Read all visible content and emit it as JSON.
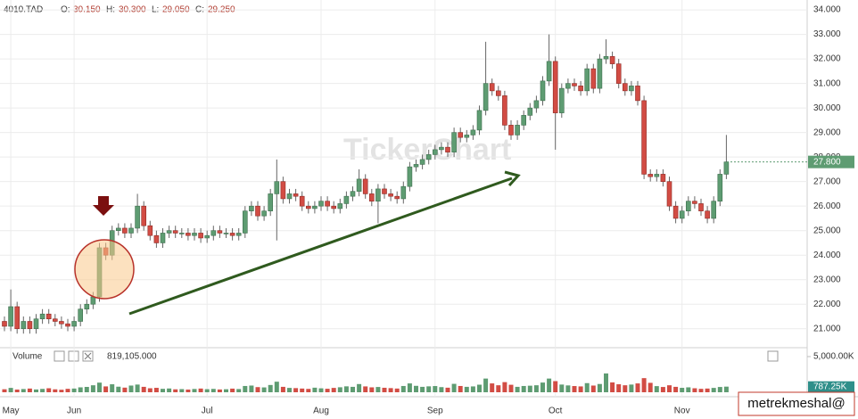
{
  "header": {
    "symbol": "4010.TAD",
    "fields": [
      {
        "label": "O:",
        "value": "30.150"
      },
      {
        "label": "H:",
        "value": "30.300"
      },
      {
        "label": "L:",
        "value": "29.050"
      },
      {
        "label": "C:",
        "value": "29.250"
      }
    ]
  },
  "watermark": "TickerChart",
  "signature": "metrekmeshal@",
  "chart_data": {
    "type": "candlestick",
    "categories": [
      null,
      "May",
      null,
      null,
      null,
      null,
      null,
      null,
      null,
      null,
      null,
      "Jun",
      null,
      null,
      null,
      null,
      null,
      null,
      null,
      null,
      null,
      null,
      null,
      null,
      null,
      null,
      null,
      null,
      null,
      null,
      null,
      null,
      "Jul",
      null,
      null,
      null,
      null,
      null,
      null,
      null,
      null,
      null,
      null,
      null,
      null,
      null,
      null,
      null,
      null,
      null,
      "Aug",
      null,
      null,
      null,
      null,
      null,
      null,
      null,
      null,
      null,
      null,
      null,
      null,
      null,
      null,
      null,
      null,
      null,
      "Sep",
      null,
      null,
      null,
      null,
      null,
      null,
      null,
      null,
      null,
      null,
      null,
      null,
      null,
      null,
      null,
      null,
      null,
      null,
      "Oct",
      null,
      null,
      null,
      null,
      null,
      null,
      null,
      null,
      null,
      null,
      null,
      null,
      null,
      null,
      null,
      null,
      null,
      null,
      null,
      "Nov",
      null,
      null,
      null,
      null,
      null,
      null,
      null
    ],
    "open": [
      21.3,
      21.1,
      21.9,
      21.0,
      21.3,
      21.0,
      21.4,
      21.6,
      21.4,
      21.3,
      21.2,
      21.1,
      21.3,
      21.8,
      22.0,
      22.3,
      24.3,
      24.0,
      25.0,
      25.1,
      24.9,
      25.1,
      26.0,
      25.2,
      24.8,
      24.5,
      24.9,
      25.0,
      24.9,
      24.9,
      24.8,
      24.9,
      24.7,
      24.8,
      25.0,
      24.9,
      24.9,
      24.8,
      24.9,
      25.8,
      26.0,
      25.6,
      25.8,
      26.5,
      27.0,
      26.3,
      26.5,
      26.4,
      26.0,
      25.9,
      26.0,
      26.2,
      26.0,
      25.9,
      26.1,
      26.4,
      26.6,
      27.1,
      26.5,
      26.2,
      26.7,
      26.5,
      26.4,
      26.3,
      26.8,
      27.6,
      27.7,
      27.9,
      28.1,
      28.3,
      28.4,
      28.2,
      29.0,
      28.8,
      28.9,
      29.1,
      29.9,
      31.0,
      30.7,
      30.5,
      29.3,
      28.9,
      29.3,
      29.7,
      30.0,
      30.3,
      31.1,
      31.9,
      29.8,
      30.8,
      31.0,
      30.9,
      30.7,
      31.6,
      30.8,
      32.0,
      32.1,
      31.8,
      31.0,
      30.7,
      30.9,
      30.3,
      27.3,
      27.2,
      27.3,
      27.0,
      26.0,
      25.5,
      25.8,
      26.2,
      26.1,
      25.8,
      25.5,
      26.2,
      27.3
    ],
    "high": [
      21.5,
      22.6,
      22.1,
      21.5,
      21.5,
      21.6,
      21.8,
      21.8,
      21.6,
      21.5,
      21.4,
      21.5,
      22.0,
      22.2,
      22.5,
      24.5,
      24.5,
      25.2,
      25.3,
      25.3,
      25.3,
      26.5,
      26.2,
      25.4,
      25.0,
      25.1,
      25.2,
      25.2,
      25.1,
      25.1,
      25.1,
      25.1,
      25.0,
      25.2,
      25.2,
      25.1,
      25.1,
      25.1,
      26.0,
      26.2,
      26.2,
      26.0,
      26.7,
      27.9,
      27.2,
      26.7,
      26.7,
      26.6,
      26.2,
      26.2,
      26.4,
      26.4,
      26.2,
      26.3,
      26.6,
      26.8,
      27.5,
      27.3,
      26.7,
      26.9,
      26.9,
      26.7,
      26.6,
      27.0,
      27.8,
      27.9,
      28.1,
      28.3,
      28.5,
      28.6,
      28.6,
      29.2,
      29.2,
      29.1,
      29.3,
      30.1,
      32.7,
      31.2,
      30.9,
      30.7,
      29.5,
      29.5,
      29.9,
      30.2,
      30.5,
      31.3,
      33.0,
      32.1,
      31.0,
      31.2,
      31.2,
      31.1,
      31.8,
      31.8,
      32.2,
      32.8,
      32.3,
      32.0,
      31.2,
      31.1,
      31.1,
      30.5,
      27.5,
      27.5,
      27.5,
      27.2,
      26.2,
      26.0,
      26.4,
      26.4,
      26.3,
      26.0,
      26.4,
      27.5,
      28.9
    ],
    "low": [
      20.9,
      20.9,
      20.8,
      20.8,
      20.8,
      20.8,
      21.2,
      21.2,
      21.1,
      21.0,
      20.9,
      20.9,
      21.1,
      21.6,
      21.8,
      22.1,
      23.8,
      23.8,
      24.8,
      24.7,
      24.7,
      24.9,
      25.0,
      24.6,
      24.3,
      24.3,
      24.7,
      24.7,
      24.7,
      24.6,
      24.6,
      24.5,
      24.5,
      24.6,
      24.7,
      24.7,
      24.6,
      24.6,
      24.7,
      25.6,
      25.4,
      25.4,
      25.6,
      24.6,
      26.1,
      26.1,
      26.2,
      25.8,
      25.7,
      25.7,
      25.8,
      25.8,
      25.7,
      25.7,
      25.9,
      26.2,
      26.4,
      26.3,
      26.0,
      25.3,
      26.3,
      26.2,
      26.1,
      26.1,
      26.6,
      27.4,
      27.5,
      27.7,
      27.9,
      28.1,
      28.0,
      28.0,
      28.6,
      28.6,
      28.7,
      28.9,
      29.7,
      30.5,
      30.3,
      29.1,
      28.7,
      28.7,
      29.1,
      29.5,
      29.8,
      30.1,
      30.9,
      28.3,
      29.6,
      30.6,
      30.7,
      30.5,
      30.5,
      30.6,
      30.6,
      31.8,
      31.6,
      30.8,
      30.5,
      30.5,
      30.1,
      27.1,
      27.0,
      27.0,
      26.8,
      25.8,
      25.3,
      25.3,
      25.6,
      25.9,
      25.6,
      25.3,
      25.3,
      26.0,
      27.1
    ],
    "close": [
      21.1,
      21.9,
      21.0,
      21.3,
      21.0,
      21.4,
      21.6,
      21.4,
      21.3,
      21.2,
      21.1,
      21.3,
      21.8,
      22.0,
      22.3,
      24.3,
      24.0,
      25.0,
      25.1,
      24.9,
      25.1,
      26.0,
      25.2,
      24.8,
      24.5,
      24.9,
      25.0,
      24.9,
      24.9,
      24.8,
      24.9,
      24.7,
      24.8,
      25.0,
      24.9,
      24.9,
      24.8,
      24.9,
      25.8,
      26.0,
      25.6,
      25.8,
      26.5,
      27.0,
      26.3,
      26.5,
      26.4,
      26.0,
      25.9,
      26.0,
      26.2,
      26.0,
      25.9,
      26.1,
      26.4,
      26.6,
      27.1,
      26.5,
      26.2,
      26.7,
      26.5,
      26.4,
      26.3,
      26.8,
      27.6,
      27.7,
      27.9,
      28.1,
      28.3,
      28.4,
      28.2,
      29.0,
      28.8,
      28.9,
      29.1,
      29.9,
      31.0,
      30.7,
      30.5,
      29.3,
      28.9,
      29.3,
      29.7,
      30.0,
      30.3,
      31.1,
      31.9,
      29.8,
      30.8,
      31.0,
      30.9,
      30.7,
      31.6,
      30.8,
      32.0,
      32.1,
      31.8,
      31.0,
      30.7,
      30.9,
      30.3,
      27.3,
      27.2,
      27.3,
      27.0,
      26.0,
      25.5,
      25.8,
      26.2,
      26.1,
      25.8,
      25.5,
      26.2,
      27.3,
      27.8
    ],
    "volume": [
      420000,
      610000,
      380000,
      450000,
      520000,
      390000,
      470000,
      560000,
      410000,
      350000,
      480000,
      520000,
      690000,
      750000,
      980000,
      1350000,
      820000,
      1120000,
      780000,
      650000,
      940000,
      1080000,
      760000,
      560000,
      620000,
      480000,
      530000,
      410000,
      440000,
      380000,
      460000,
      520000,
      430000,
      470000,
      390000,
      420000,
      510000,
      450000,
      880000,
      940000,
      720000,
      680000,
      1020000,
      1480000,
      760000,
      610000,
      580000,
      520000,
      470000,
      640000,
      550000,
      490000,
      610000,
      700000,
      830000,
      760000,
      1150000,
      820000,
      690000,
      740000,
      630000,
      580000,
      520000,
      880000,
      1240000,
      900000,
      760000,
      830000,
      870000,
      720000,
      640000,
      1180000,
      880000,
      760000,
      820000,
      1060000,
      1920000,
      1240000,
      980000,
      1420000,
      1050000,
      760000,
      880000,
      920000,
      980000,
      1360000,
      1920000,
      1560000,
      1080000,
      960000,
      870000,
      820000,
      1280000,
      940000,
      1160000,
      2640000,
      1380000,
      1120000,
      980000,
      1080000,
      1240000,
      1980000,
      1320000,
      860000,
      740000,
      980000,
      760000,
      620000,
      690000,
      560000,
      480000,
      520000,
      610000,
      740000,
      787250
    ],
    "up_color": "#5e9c72",
    "down_color": "#d24c44",
    "ylim": [
      20.3,
      34.33
    ],
    "yticks": [
      {
        "value": 21,
        "label": "21.000"
      },
      {
        "value": 22,
        "label": "22.000"
      },
      {
        "value": 23,
        "label": "23.000"
      },
      {
        "value": 24,
        "label": "24.000"
      },
      {
        "value": 25,
        "label": "25.000"
      },
      {
        "value": 26,
        "label": "26.000"
      },
      {
        "value": 27,
        "label": "27.000"
      },
      {
        "value": 28,
        "label": "28.000"
      },
      {
        "value": 29,
        "label": "29.000"
      },
      {
        "value": 30,
        "label": "30.000"
      },
      {
        "value": 31,
        "label": "31.000"
      },
      {
        "value": 32,
        "label": "32.000"
      },
      {
        "value": 33,
        "label": "33.000"
      },
      {
        "value": 34,
        "label": "34.000"
      }
    ],
    "current_price": {
      "value": 27.8,
      "label": "27.800"
    },
    "volume_title": "Volume",
    "volume_readout": "819,105.000",
    "volume_ylim": [
      0,
      6000000
    ],
    "volume_ticks": [
      {
        "value": 5000000,
        "label": "5,000.00K"
      }
    ],
    "current_volume": {
      "value": 787250,
      "label": "787.25K"
    },
    "grid": true
  }
}
